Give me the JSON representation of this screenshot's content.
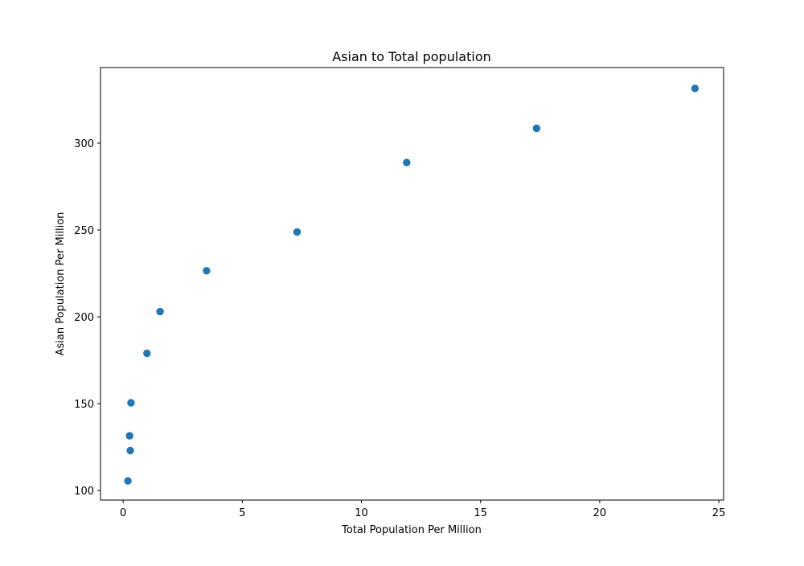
{
  "chart_data": {
    "type": "scatter",
    "title": "Asian to Total population",
    "xlabel": "Total Population Per Million",
    "ylabel": "Asian Population Per Million",
    "xlim": [
      -0.95,
      25.2
    ],
    "ylim": [
      94.5,
      343.5
    ],
    "xticks": [
      0,
      5,
      10,
      15,
      20,
      25
    ],
    "yticks": [
      100,
      150,
      200,
      250,
      300
    ],
    "marker_color": "#1f77b4",
    "grid": false,
    "legend": "none",
    "points": [
      {
        "x": 0.2,
        "y": 105.5
      },
      {
        "x": 0.3,
        "y": 123
      },
      {
        "x": 0.27,
        "y": 131.5
      },
      {
        "x": 0.33,
        "y": 150.5
      },
      {
        "x": 1.0,
        "y": 179
      },
      {
        "x": 1.55,
        "y": 203
      },
      {
        "x": 3.5,
        "y": 226.5
      },
      {
        "x": 7.3,
        "y": 248.8
      },
      {
        "x": 11.9,
        "y": 288.8
      },
      {
        "x": 17.35,
        "y": 308.5
      },
      {
        "x": 24.0,
        "y": 331.5
      }
    ]
  }
}
